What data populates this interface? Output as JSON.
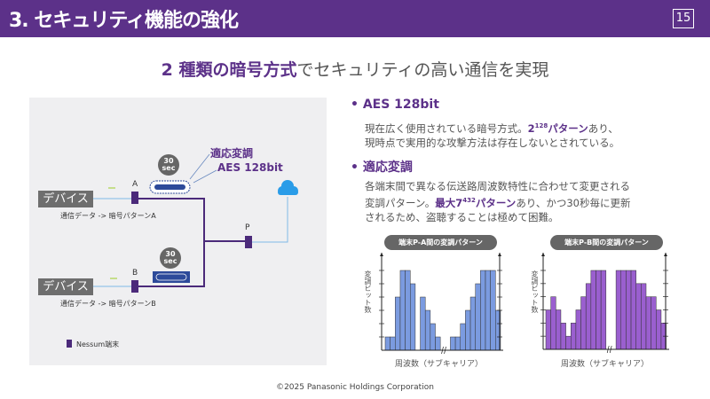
{
  "header": {
    "title": "3. セキュリティ機能の強化",
    "page_number": "15",
    "color": "#5c3189"
  },
  "subtitle": {
    "emphasis": "2 種類の暗号方式",
    "rest": "でセキュリティの高い通信を実現"
  },
  "diagram": {
    "device_a": "デバイス",
    "device_b": "デバイス",
    "node_a": "A",
    "node_b": "B",
    "node_p": "P",
    "timer_a": [
      "30",
      "sec"
    ],
    "timer_b": [
      "30",
      "sec"
    ],
    "data_a": "通信データ -> 暗号パターンA",
    "data_b": "通信データ -> 暗号パターンB",
    "callout_1": "適応変調",
    "callout_2": "AES 128bit",
    "legend": "Nessum端末",
    "cloud_icon": "cloud-icon"
  },
  "bullets": [
    {
      "title": "AES 128bit",
      "lines": [
        {
          "pre": "現在広く使用されている暗号方式。",
          "b": "2",
          "sup": "128",
          "b2": "パターン",
          "post": "あり、"
        },
        {
          "pre": "現時点で実用的な攻撃方法は存在しないとされている。"
        }
      ]
    },
    {
      "title": "適応変調",
      "lines": [
        {
          "pre": "各端末間で異なる伝送路周波数特性に合わせて変更される"
        },
        {
          "pre": "変調パターン。",
          "b": "最大7",
          "sup": "432",
          "b2": "パターン",
          "post": "あり、かつ30秒毎に更新"
        },
        {
          "pre": "されるため、盗聴することは極めて困難。"
        }
      ]
    }
  ],
  "chart_data": [
    {
      "type": "bar",
      "title": "端末P-A間の変調パターン",
      "xlabel": "周波数（サブキャリア）",
      "ylabel": "変調ビット数",
      "ylim": [
        0,
        6
      ],
      "axis_break": true,
      "color": "#7b9be0",
      "values": [
        1,
        1,
        4,
        6,
        6,
        5,
        null,
        4,
        3,
        2,
        1,
        null,
        null,
        1,
        1,
        2,
        3,
        4,
        5,
        6,
        6,
        6,
        3
      ]
    },
    {
      "type": "bar",
      "title": "端末P-B間の変調パターン",
      "xlabel": "周波数（サブキャリア）",
      "ylabel": "変調ビット数",
      "ylim": [
        0,
        6
      ],
      "axis_break": true,
      "color": "#9a5fcf",
      "values": [
        3,
        4,
        3,
        2,
        1,
        2,
        3,
        4,
        5,
        6,
        6,
        6,
        null,
        null,
        6,
        6,
        6,
        6,
        5,
        5,
        4,
        4,
        3,
        2
      ]
    }
  ],
  "footer": "©2025 Panasonic Holdings Corporation"
}
